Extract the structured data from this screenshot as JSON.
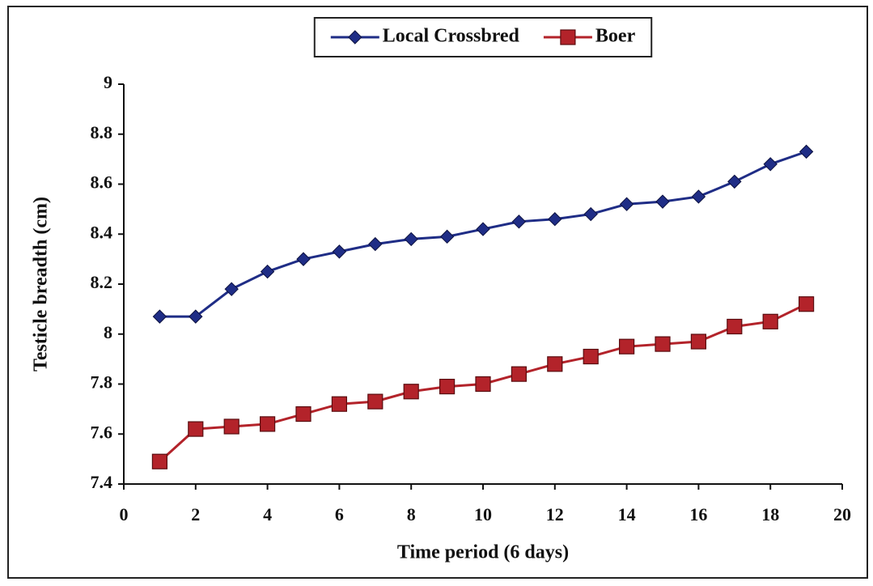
{
  "chart_data": {
    "type": "line",
    "xlabel": "Time period (6 days)",
    "ylabel": "Testicle breadth (cm)",
    "x": [
      1,
      2,
      3,
      4,
      5,
      6,
      7,
      8,
      9,
      10,
      11,
      12,
      13,
      14,
      15,
      16,
      17,
      18,
      19
    ],
    "series": [
      {
        "name": "Local Crossbred",
        "color": "#1f2d86",
        "marker": "diamond",
        "values": [
          8.07,
          8.07,
          8.18,
          8.25,
          8.3,
          8.33,
          8.36,
          8.38,
          8.39,
          8.42,
          8.45,
          8.46,
          8.48,
          8.52,
          8.53,
          8.55,
          8.61,
          8.68,
          8.73
        ]
      },
      {
        "name": "Boer",
        "color": "#b3232a",
        "marker": "square",
        "values": [
          7.49,
          7.62,
          7.63,
          7.64,
          7.68,
          7.72,
          7.73,
          7.77,
          7.79,
          7.8,
          7.84,
          7.88,
          7.91,
          7.95,
          7.96,
          7.97,
          8.03,
          8.05,
          8.12
        ]
      }
    ],
    "xlim": [
      0,
      20
    ],
    "xticks": [
      0,
      2,
      4,
      6,
      8,
      10,
      12,
      14,
      16,
      18,
      20
    ],
    "ylim": [
      7.4,
      9
    ],
    "yticks": [
      7.4,
      7.6,
      7.8,
      8,
      8.2,
      8.4,
      8.6,
      8.8,
      9
    ],
    "grid": false,
    "legend": "top"
  }
}
